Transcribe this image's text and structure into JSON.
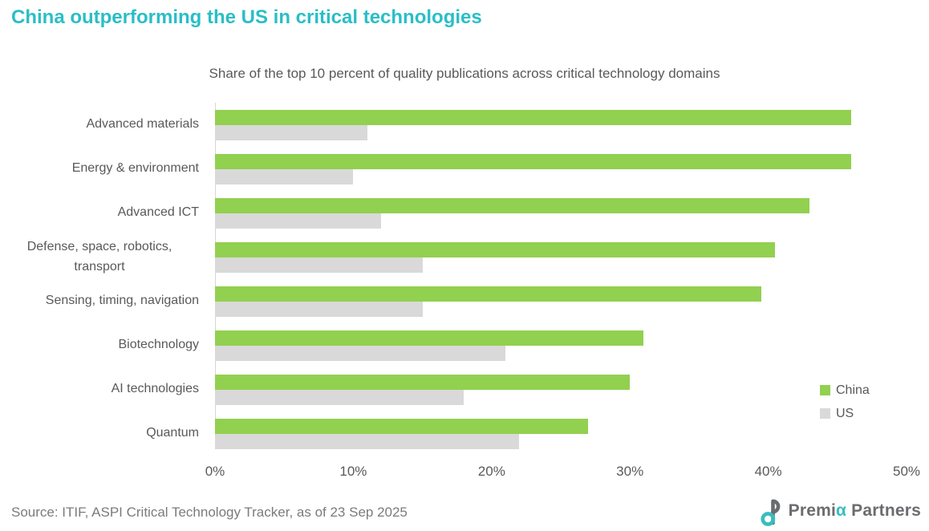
{
  "title": "China outperforming the US in critical technologies",
  "subtitle": "Share of the top 10 percent of quality publications across critical technology domains",
  "source": "Source: ITIF, ASPI Critical Technology Tracker, as of 23 Sep 2025",
  "colors": {
    "title_teal": "#2ABEC6",
    "china_green": "#92D050",
    "us_gray": "#D9D9D9",
    "text_gray": "#595959",
    "axis_gray": "#D6D6D6"
  },
  "legend": [
    {
      "label": "China",
      "color": "#92D050"
    },
    {
      "label": "US",
      "color": "#D9D9D9"
    }
  ],
  "chart_data": {
    "type": "bar",
    "orientation": "horizontal",
    "title": "Share of the top 10 percent of quality publications across critical technology domains",
    "categories": [
      "Advanced materials",
      "Energy & environment",
      "Advanced ICT",
      "Defense, space, robotics, transport",
      "Sensing, timing, navigation",
      "Biotechnology",
      "AI technologies",
      "Quantum"
    ],
    "series": [
      {
        "name": "China",
        "color": "#92D050",
        "values": [
          46,
          46,
          43,
          40.5,
          39.5,
          31,
          30,
          27
        ]
      },
      {
        "name": "US",
        "color": "#D9D9D9",
        "values": [
          11,
          10,
          12,
          15,
          15,
          21,
          18,
          22
        ]
      }
    ],
    "xlim": [
      0,
      50
    ],
    "xticks": [
      "0%",
      "10%",
      "20%",
      "30%",
      "40%",
      "50%"
    ],
    "xtick_values": [
      0,
      10,
      20,
      30,
      40,
      50
    ],
    "grid": false,
    "legend_position": "right"
  },
  "logo": {
    "text_pre": "Premi",
    "alpha": "α",
    "text_post": " Partners"
  }
}
